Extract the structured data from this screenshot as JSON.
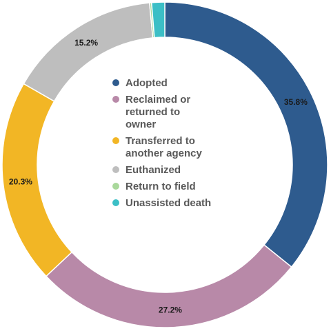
{
  "chart_data": {
    "type": "pie",
    "variant": "donut",
    "title": "",
    "start_angle_deg": 0,
    "direction": "clockwise",
    "legend_position": "center",
    "slices": [
      {
        "name": "Adopted",
        "legend_lines": [
          "Adopted"
        ],
        "value": 35.8,
        "label": "35.8%",
        "color": "#2E5B8E"
      },
      {
        "name": "Reclaimed or returned to owner",
        "legend_lines": [
          "Reclaimed or",
          "returned to",
          "owner"
        ],
        "value": 27.2,
        "label": "27.2%",
        "color": "#B889A8"
      },
      {
        "name": "Transferred to another agency",
        "legend_lines": [
          "Transferred to",
          "another agency"
        ],
        "value": 20.3,
        "label": "20.3%",
        "color": "#F2B625"
      },
      {
        "name": "Euthanized",
        "legend_lines": [
          "Euthanized"
        ],
        "value": 15.2,
        "label": "15.2%",
        "color": "#BEBEBE"
      },
      {
        "name": "Return to field",
        "legend_lines": [
          "Return to field"
        ],
        "value": 0.2,
        "label": "",
        "color": "#A9D89B"
      },
      {
        "name": "Unassisted death",
        "legend_lines": [
          "Unassisted death"
        ],
        "value": 1.3,
        "label": "",
        "color": "#3CBFC6"
      }
    ]
  }
}
